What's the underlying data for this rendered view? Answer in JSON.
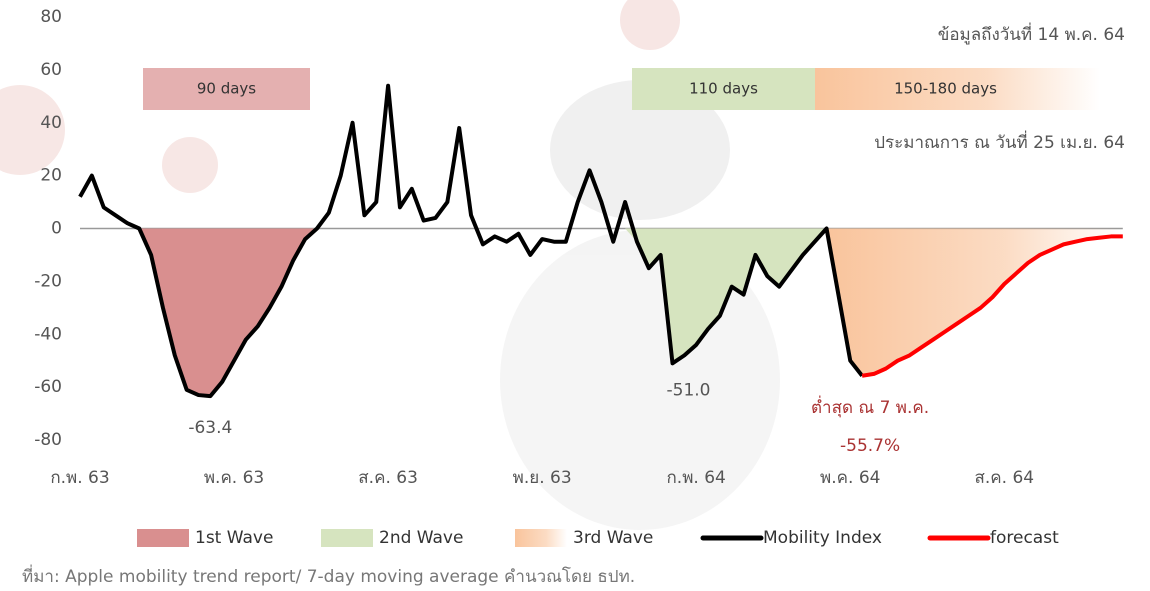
{
  "chart_data": {
    "type": "line",
    "categories": [
      "ก.พ. 63",
      null,
      null,
      null,
      null,
      null,
      null,
      null,
      null,
      null,
      null,
      null,
      null,
      "พ.ค. 63",
      null,
      null,
      null,
      null,
      null,
      null,
      null,
      null,
      null,
      null,
      null,
      null,
      "ส.ค. 63",
      null,
      null,
      null,
      null,
      null,
      null,
      null,
      null,
      null,
      null,
      null,
      null,
      "พ.ย. 63",
      null,
      null,
      null,
      null,
      null,
      null,
      null,
      null,
      null,
      null,
      null,
      null,
      "ก.พ. 64",
      null,
      null,
      null,
      null,
      null,
      null,
      null,
      null,
      null,
      null,
      null,
      null,
      "พ.ค. 64",
      null,
      null,
      null,
      null,
      null,
      null,
      null,
      null,
      null,
      null,
      null,
      null,
      "ส.ค. 64",
      null,
      null,
      null,
      null,
      null,
      null,
      null,
      null,
      null,
      null
    ],
    "series": [
      {
        "name": "Mobility Index",
        "color": "#000000",
        "values": [
          12,
          20,
          8,
          5,
          2,
          0,
          -10,
          -30,
          -48,
          -61,
          -63,
          -63.4,
          -58,
          -50,
          -42,
          -37,
          -30,
          -22,
          -12,
          -4,
          0,
          6,
          20,
          40,
          5,
          10,
          54,
          8,
          15,
          3,
          4,
          10,
          38,
          5,
          -6,
          -3,
          -5,
          -2,
          -10,
          -4,
          -5,
          -5,
          10,
          22,
          10,
          -5,
          10,
          -5,
          -15,
          -10,
          -51.0,
          -48,
          -44,
          -38,
          -33,
          -22,
          -25,
          -10,
          -18,
          -22,
          -16,
          -10,
          -5,
          0,
          -25,
          -50,
          -55.7,
          null,
          null,
          null,
          null,
          null,
          null,
          null,
          null,
          null,
          null,
          null,
          null,
          null,
          null,
          null,
          null,
          null,
          null,
          null,
          null,
          null,
          null
        ],
        "value_labels": [
          null,
          null,
          null,
          null,
          null,
          null,
          null,
          null,
          null,
          null,
          null,
          "-63.4",
          null,
          null,
          null,
          null,
          null,
          null,
          null,
          null,
          null,
          null,
          null,
          null,
          null,
          null,
          null,
          null,
          null,
          null,
          null,
          null,
          null,
          null,
          null,
          null,
          null,
          null,
          null,
          null,
          null,
          null,
          null,
          null,
          null,
          null,
          null,
          null,
          null,
          null,
          "-51.0",
          null,
          null,
          null,
          null,
          null,
          null,
          null,
          null,
          null,
          null,
          null,
          null,
          null,
          null,
          null,
          null,
          null,
          null,
          null,
          null,
          null,
          null,
          null,
          null,
          null,
          null,
          null,
          null,
          null,
          null,
          null,
          null,
          null,
          null,
          null,
          null,
          null,
          null
        ]
      },
      {
        "name": "forecast",
        "color": "#ff0000",
        "values": [
          null,
          null,
          null,
          null,
          null,
          null,
          null,
          null,
          null,
          null,
          null,
          null,
          null,
          null,
          null,
          null,
          null,
          null,
          null,
          null,
          null,
          null,
          null,
          null,
          null,
          null,
          null,
          null,
          null,
          null,
          null,
          null,
          null,
          null,
          null,
          null,
          null,
          null,
          null,
          null,
          null,
          null,
          null,
          null,
          null,
          null,
          null,
          null,
          null,
          null,
          null,
          null,
          null,
          null,
          null,
          null,
          null,
          null,
          null,
          null,
          null,
          null,
          null,
          null,
          null,
          null,
          -55.7,
          -55,
          -53,
          -50,
          -48,
          -45,
          -42,
          -39,
          -36,
          -33,
          -30,
          -26,
          -21,
          -17,
          -13,
          -10,
          -8,
          -6,
          -5,
          -4,
          -3.5,
          -3,
          -3
        ],
        "value_labels": [
          null,
          null,
          null,
          null,
          null,
          null,
          null,
          null,
          null,
          null,
          null,
          null,
          null,
          null,
          null,
          null,
          null,
          null,
          null,
          null,
          null,
          null,
          null,
          null,
          null,
          null,
          null,
          null,
          null,
          null,
          null,
          null,
          null,
          null,
          null,
          null,
          null,
          null,
          null,
          null,
          null,
          null,
          null,
          null,
          null,
          null,
          null,
          null,
          null,
          null,
          null,
          null,
          null,
          null,
          null,
          null,
          null,
          null,
          null,
          null,
          null,
          null,
          null,
          null,
          null,
          null,
          "-55.7%",
          null,
          null,
          null,
          null,
          null,
          null,
          null,
          null,
          null,
          null,
          null,
          null,
          null,
          null,
          null,
          null,
          null,
          null,
          null,
          null,
          null,
          null
        ]
      }
    ],
    "waves": [
      {
        "name": "1st Wave",
        "color": "#d98f8f",
        "label": "90 days"
      },
      {
        "name": "2nd Wave",
        "color": "#d6e4bf",
        "label": "110 days"
      },
      {
        "name": "3rd Wave",
        "color": "#f9c49c",
        "label": "150-180 days"
      }
    ],
    "ylim": [
      -80,
      80
    ],
    "yticks": [
      80,
      60,
      40,
      20,
      0,
      -20,
      -40,
      -60,
      -80
    ],
    "annotations": [
      "ข้อมูลถึงวันที่ 14 พ.ค. 64",
      "ประมาณการ ณ วันที่ 25 เม.ย. 64",
      "ต่ำสุด ณ 7 พ.ค."
    ],
    "source": "ที่มา: Apple mobility trend report/ 7-day moving average  คำนวณโดย ธปท."
  }
}
